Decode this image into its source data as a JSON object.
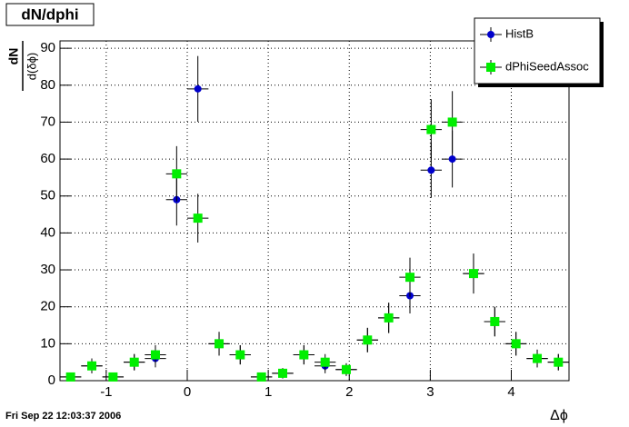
{
  "chart_data": {
    "type": "errorbar-scatter",
    "title": "dN/dphi",
    "y_label_numerator": "dN",
    "y_label_denominator": "d(δϕ)",
    "x_label": "Δϕ",
    "timestamp": "Fri Sep 22 12:03:37 2006",
    "x": [
      -1.44,
      -1.178,
      -0.916,
      -0.654,
      -0.393,
      -0.131,
      0.131,
      0.393,
      0.654,
      0.916,
      1.178,
      1.44,
      1.702,
      1.963,
      2.225,
      2.487,
      2.749,
      3.011,
      3.272,
      3.534,
      3.796,
      4.058,
      4.32,
      4.581
    ],
    "bin_width": 0.2618,
    "series": [
      {
        "name": "HistB",
        "color": "#0000cc",
        "marker": "circle",
        "values": [
          1,
          4,
          1,
          5,
          6,
          49,
          79,
          10,
          7,
          1,
          2,
          7,
          4,
          3,
          11,
          17,
          23,
          57,
          60,
          29,
          16,
          10,
          6,
          5
        ],
        "errors": [
          1,
          2,
          1,
          2.2,
          2.4,
          7,
          8.9,
          3.2,
          2.6,
          1,
          1.4,
          2.6,
          2,
          1.7,
          3.3,
          4.1,
          4.8,
          7.5,
          7.7,
          5.4,
          4,
          3.2,
          2.4,
          2.2
        ]
      },
      {
        "name": "dPhiSeedAssoc",
        "color": "#00ee00",
        "marker": "square",
        "values": [
          1,
          4,
          1,
          5,
          7,
          56,
          44,
          10,
          7,
          1,
          2,
          7,
          5,
          3,
          11,
          17,
          28,
          68,
          70,
          29,
          16,
          10,
          6,
          5
        ],
        "errors": [
          1,
          2,
          1,
          2.2,
          2.6,
          7.5,
          6.6,
          3.2,
          2.6,
          1,
          1.4,
          2.6,
          2.2,
          1.7,
          3.3,
          4.1,
          5.3,
          8.2,
          8.4,
          5.4,
          4,
          3.2,
          2.4,
          2.2
        ]
      }
    ],
    "xlim": [
      -1.5708,
      4.7124
    ],
    "ylim": [
      0,
      92
    ],
    "xticks": [
      -1,
      0,
      1,
      2,
      3,
      4
    ],
    "yticks": [
      0,
      10,
      20,
      30,
      40,
      50,
      60,
      70,
      80,
      90
    ],
    "grid": true,
    "legend": "top-right"
  }
}
